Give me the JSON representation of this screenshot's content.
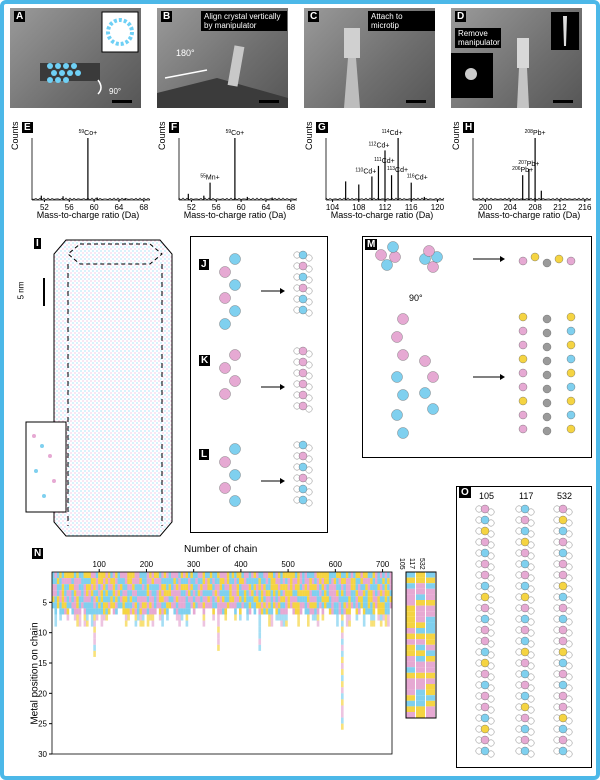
{
  "panels": {
    "A": {
      "letter": "A",
      "rotation": "90°"
    },
    "B": {
      "letter": "B",
      "note": "Align crystal vertically by manipulator",
      "rotation": "180°"
    },
    "C": {
      "letter": "C",
      "note": "Attach to microtip"
    },
    "D": {
      "letter": "D",
      "note": "Remove manipulator"
    },
    "E": {
      "letter": "E"
    },
    "F": {
      "letter": "F"
    },
    "G": {
      "letter": "G"
    },
    "H": {
      "letter": "H"
    },
    "I": {
      "letter": "I",
      "scale": "5 nm"
    },
    "J": {
      "letter": "J"
    },
    "K": {
      "letter": "K"
    },
    "L": {
      "letter": "L"
    },
    "M": {
      "letter": "M",
      "rotation": "90°"
    },
    "N": {
      "letter": "N",
      "title": "Number of chain",
      "ylabel": "Metal position on chain"
    },
    "O": {
      "letter": "O",
      "columns": [
        "105",
        "117",
        "532"
      ]
    }
  },
  "ms_common": {
    "ylabel": "Counts",
    "xlabel": "Mass-to-charge ratio (Da)"
  },
  "colors": {
    "frame": "#4cb8e8",
    "cyan": "#7fd0ef",
    "pink": "#e6a9d3",
    "yellow": "#f5d442",
    "gray": "#9a9a9a"
  },
  "chart_data": [
    {
      "type": "line",
      "panel": "E",
      "xticks": [
        "52",
        "56",
        "60",
        "64",
        "68"
      ],
      "xlim": [
        50,
        69
      ],
      "peaks": [
        {
          "x": 51.5,
          "h": 0.07
        },
        {
          "x": 55,
          "h": 0.06
        },
        {
          "x": 59,
          "h": 1.0
        },
        {
          "x": 60.5,
          "h": 0.04
        },
        {
          "x": 65,
          "h": 0.03
        }
      ],
      "labels": [
        {
          "text": "59Co+",
          "x": 59
        }
      ]
    },
    {
      "type": "line",
      "panel": "F",
      "xticks": [
        "52",
        "56",
        "60",
        "64",
        "68"
      ],
      "xlim": [
        50,
        69
      ],
      "peaks": [
        {
          "x": 51.5,
          "h": 0.1
        },
        {
          "x": 54,
          "h": 0.07
        },
        {
          "x": 55,
          "h": 0.28
        },
        {
          "x": 59,
          "h": 1.0
        },
        {
          "x": 61,
          "h": 0.05
        },
        {
          "x": 65,
          "h": 0.04
        }
      ],
      "labels": [
        {
          "text": "55Mn+",
          "x": 55
        },
        {
          "text": "59Co+",
          "x": 59
        }
      ]
    },
    {
      "type": "line",
      "panel": "G",
      "xticks": [
        "104",
        "108",
        "112",
        "116",
        "120"
      ],
      "xlim": [
        103,
        121
      ],
      "peaks": [
        {
          "x": 106,
          "h": 0.3
        },
        {
          "x": 108,
          "h": 0.25
        },
        {
          "x": 110,
          "h": 0.38
        },
        {
          "x": 111,
          "h": 0.55
        },
        {
          "x": 112,
          "h": 0.8
        },
        {
          "x": 113,
          "h": 0.4
        },
        {
          "x": 114,
          "h": 1.0
        },
        {
          "x": 116,
          "h": 0.28
        },
        {
          "x": 118,
          "h": 0.05
        }
      ],
      "labels": [
        {
          "text": "110Cd+",
          "x": 110
        },
        {
          "text": "111Cd+",
          "x": 111
        },
        {
          "text": "112Cd+",
          "x": 112
        },
        {
          "text": "113Cd+",
          "x": 113
        },
        {
          "text": "114Cd+",
          "x": 114
        },
        {
          "text": "116Cd+",
          "x": 116
        }
      ]
    },
    {
      "type": "line",
      "panel": "H",
      "xticks": [
        "200",
        "204",
        "208",
        "212",
        "216"
      ],
      "xlim": [
        198,
        217
      ],
      "peaks": [
        {
          "x": 206,
          "h": 0.4
        },
        {
          "x": 207,
          "h": 0.5
        },
        {
          "x": 208,
          "h": 1.0
        },
        {
          "x": 209,
          "h": 0.15
        }
      ],
      "labels": [
        {
          "text": "206Pb+",
          "x": 206
        },
        {
          "text": "207Pb+",
          "x": 207
        },
        {
          "text": "208Pb+",
          "x": 208
        }
      ]
    },
    {
      "type": "heatmap",
      "panel": "N",
      "title": "Number of chain",
      "ylabel": "Metal position on chain",
      "xticks": [
        "100",
        "200",
        "300",
        "400",
        "500",
        "600",
        "700"
      ],
      "xlim": [
        0,
        720
      ],
      "yticks": [
        "5",
        "10",
        "15",
        "20",
        "25",
        "30"
      ],
      "ylim": [
        0,
        30
      ],
      "highlight_columns": [
        "105",
        "117",
        "532"
      ]
    }
  ]
}
